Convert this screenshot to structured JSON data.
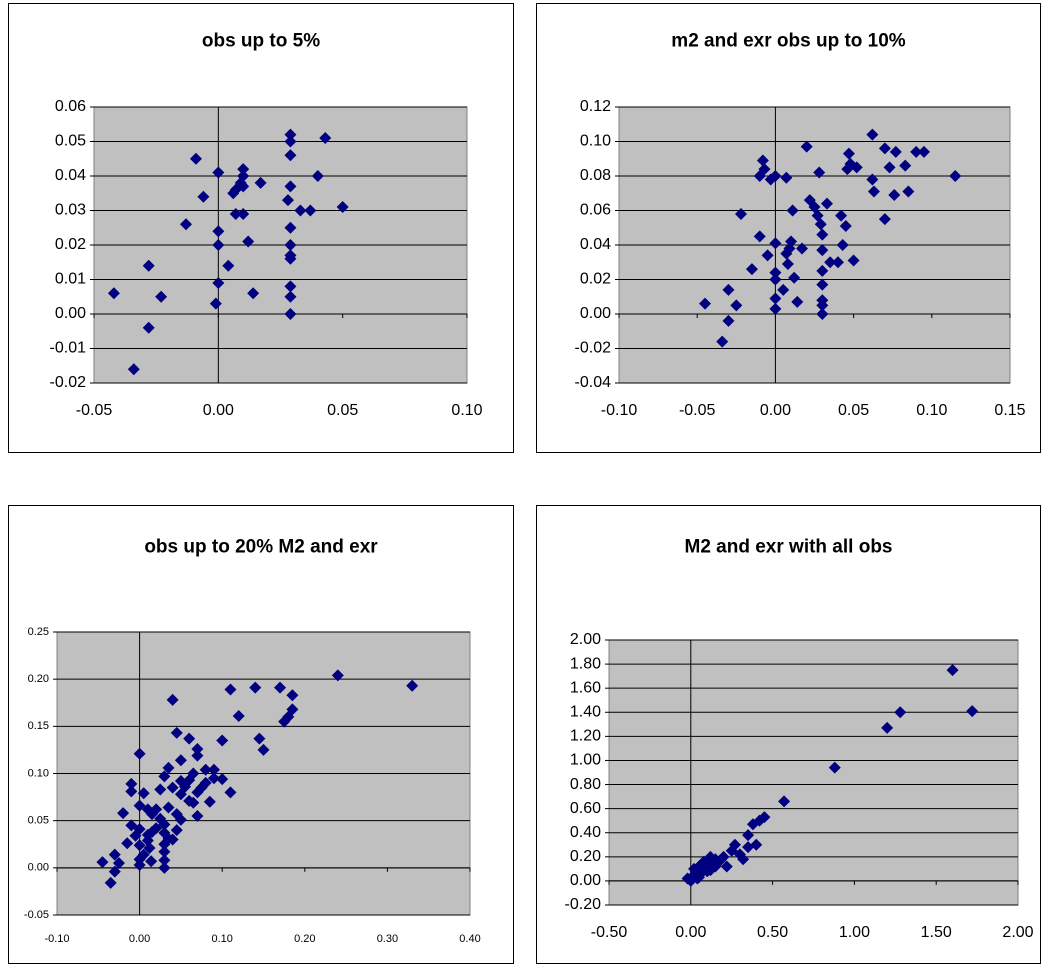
{
  "chart_data": [
    {
      "type": "scatter",
      "title": "obs up to 5%",
      "color": "#000080",
      "grid": true,
      "x": [
        -0.042,
        -0.034,
        -0.028,
        -0.028,
        -0.023,
        -0.013,
        -0.009,
        -0.006,
        -0.001,
        0.0,
        0.0,
        0.0,
        0.0,
        0.004,
        0.006,
        0.007,
        0.007,
        0.009,
        0.01,
        0.01,
        0.01,
        0.01,
        0.012,
        0.014,
        0.017,
        0.028,
        0.029,
        0.029,
        0.029,
        0.029,
        0.029,
        0.029,
        0.029,
        0.029,
        0.029,
        0.029,
        0.029,
        0.033,
        0.037,
        0.04,
        0.043,
        0.05
      ],
      "values": [
        0.006,
        -0.016,
        0.014,
        -0.004,
        0.005,
        0.026,
        0.045,
        0.034,
        0.003,
        0.009,
        0.024,
        0.02,
        0.041,
        0.014,
        0.035,
        0.036,
        0.029,
        0.038,
        0.042,
        0.04,
        0.029,
        0.037,
        0.021,
        0.006,
        0.038,
        0.033,
        0.052,
        0.05,
        0.046,
        0.037,
        0.025,
        0.02,
        0.017,
        0.016,
        0.008,
        0.005,
        0.0,
        0.03,
        0.03,
        0.04,
        0.051,
        0.031
      ],
      "xlim": [
        -0.05,
        0.1
      ],
      "xticks": [
        -0.05,
        {
          "value": 0,
          "label": "0.00"
        },
        0.05,
        {
          "value": 0.1,
          "label": "0.10"
        }
      ],
      "ylim": [
        -0.02,
        0.06
      ],
      "yticks": [
        -0.02,
        -0.01,
        {
          "value": 0,
          "label": "0.00"
        },
        0.01,
        0.02,
        0.03,
        0.04,
        0.05,
        0.06
      ]
    },
    {
      "type": "scatter",
      "title": "m2 and exr obs up to 10%",
      "color": "#000080",
      "grid": true,
      "x": [
        -0.045,
        -0.034,
        -0.03,
        -0.03,
        -0.025,
        -0.022,
        -0.015,
        -0.01,
        -0.01,
        -0.008,
        -0.007,
        -0.005,
        -0.003,
        0.0,
        0.0,
        0.0,
        0.0,
        0.0,
        0.0,
        0.005,
        0.007,
        0.007,
        0.008,
        0.009,
        0.01,
        0.011,
        0.012,
        0.014,
        0.017,
        0.02,
        0.022,
        0.025,
        0.027,
        0.028,
        0.029,
        0.03,
        0.03,
        0.03,
        0.03,
        0.03,
        0.03,
        0.03,
        0.033,
        0.035,
        0.04,
        0.042,
        0.043,
        0.045,
        0.046,
        0.047,
        0.048,
        0.05,
        0.052,
        0.062,
        0.062,
        0.063,
        0.07,
        0.07,
        0.073,
        0.076,
        0.077,
        0.083,
        0.085,
        0.09,
        0.095,
        0.115
      ],
      "values": [
        0.006,
        -0.016,
        0.014,
        -0.004,
        0.005,
        0.058,
        0.026,
        0.045,
        0.08,
        0.089,
        0.084,
        0.034,
        0.078,
        0.08,
        0.003,
        0.009,
        0.024,
        0.02,
        0.041,
        0.014,
        0.079,
        0.035,
        0.029,
        0.038,
        0.042,
        0.06,
        0.021,
        0.007,
        0.038,
        0.097,
        0.066,
        0.062,
        0.057,
        0.082,
        0.052,
        0.046,
        0.037,
        0.025,
        0.017,
        0.008,
        0.005,
        0.0,
        0.064,
        0.03,
        0.03,
        0.057,
        0.04,
        0.051,
        0.084,
        0.093,
        0.087,
        0.031,
        0.085,
        0.104,
        0.078,
        0.071,
        0.096,
        0.055,
        0.085,
        0.069,
        0.094,
        0.086,
        0.071,
        0.094,
        0.094,
        0.08
      ],
      "xlim": [
        -0.1,
        0.15
      ],
      "xticks": [
        {
          "value": -0.1,
          "label": "-0.10"
        },
        -0.05,
        {
          "value": 0,
          "label": "0.00"
        },
        0.05,
        {
          "value": 0.1,
          "label": "0.10"
        },
        0.15
      ],
      "ylim": [
        -0.04,
        0.12
      ],
      "yticks": [
        -0.04,
        -0.02,
        {
          "value": 0,
          "label": "0.00"
        },
        0.02,
        0.04,
        0.06,
        0.08,
        {
          "value": 0.1,
          "label": "0.10"
        },
        0.12
      ]
    },
    {
      "type": "scatter",
      "title": "obs up to 20% M2 and exr",
      "color": "#000080",
      "grid": true,
      "x": [
        0.04,
        0.11,
        0.14,
        0.17,
        0.185,
        0.24,
        0.33,
        0.12,
        0.175,
        0.18,
        0.185,
        0.145,
        0.15,
        0.1,
        0.11,
        0.06,
        0.07,
        0.045,
        0.0,
        0.05,
        0.07,
        0.08,
        0.09,
        0.08,
        0.085,
        0.07,
        0.065,
        0.06,
        0.055,
        0.05,
        0.04,
        0.035,
        0.03,
        0.025,
        0.035,
        0.02,
        0.015,
        0.01,
        0.005,
        0.0,
        -0.01,
        -0.01,
        -0.02,
        -0.01,
        -0.005,
        0.0,
        0.0,
        0.0,
        0.0,
        0.005,
        0.01,
        0.01,
        0.015,
        0.02,
        0.025,
        0.03,
        0.03,
        0.03,
        0.03,
        0.03,
        0.03,
        0.035,
        0.04,
        0.045,
        0.045,
        0.05,
        0.06,
        0.07,
        0.075,
        0.065,
        0.012,
        0.014,
        -0.015,
        -0.03,
        -0.035,
        -0.03,
        -0.045,
        -0.025,
        0.09,
        0.1,
        0.05
      ],
      "values": [
        0.178,
        0.189,
        0.191,
        0.191,
        0.183,
        0.204,
        0.193,
        0.161,
        0.155,
        0.16,
        0.168,
        0.137,
        0.125,
        0.135,
        0.08,
        0.137,
        0.126,
        0.143,
        0.121,
        0.114,
        0.119,
        0.104,
        0.095,
        0.09,
        0.07,
        0.08,
        0.1,
        0.093,
        0.086,
        0.092,
        0.085,
        0.106,
        0.097,
        0.083,
        0.064,
        0.062,
        0.057,
        0.062,
        0.079,
        0.066,
        0.089,
        0.081,
        0.058,
        0.045,
        0.034,
        0.024,
        0.009,
        0.003,
        0.041,
        0.014,
        0.035,
        0.029,
        0.038,
        0.042,
        0.052,
        0.046,
        0.037,
        0.025,
        0.017,
        0.008,
        0.0,
        0.031,
        0.03,
        0.057,
        0.04,
        0.051,
        0.071,
        0.055,
        0.085,
        0.069,
        0.021,
        0.007,
        0.026,
        0.014,
        -0.016,
        -0.004,
        0.006,
        0.005,
        0.104,
        0.094,
        0.078
      ],
      "xlim": [
        -0.1,
        0.4
      ],
      "xticks": [
        {
          "value": -0.1,
          "label": "-0.10"
        },
        {
          "value": 0,
          "label": "0.00"
        },
        {
          "value": 0.1,
          "label": "0.10"
        },
        {
          "value": 0.2,
          "label": "0.20"
        },
        {
          "value": 0.3,
          "label": "0.30"
        },
        {
          "value": 0.4,
          "label": "0.40"
        }
      ],
      "ylim": [
        -0.05,
        0.25
      ],
      "yticks": [
        -0.05,
        {
          "value": 0,
          "label": "0.00"
        },
        0.05,
        {
          "value": 0.1,
          "label": "0.10"
        },
        0.15,
        {
          "value": 0.2,
          "label": "0.20"
        },
        0.25
      ]
    },
    {
      "type": "scatter",
      "title": "M2 and exr with all obs",
      "color": "#000080",
      "grid": true,
      "x": [
        0.0,
        0.02,
        0.03,
        0.05,
        0.05,
        0.07,
        0.08,
        0.1,
        0.1,
        0.12,
        0.15,
        0.15,
        0.18,
        0.2,
        0.22,
        0.25,
        0.27,
        0.3,
        0.32,
        0.35,
        0.35,
        0.38,
        0.4,
        0.42,
        0.45,
        0.57,
        0.88,
        1.2,
        1.28,
        1.6,
        1.72,
        0.02,
        0.04,
        0.06,
        0.09,
        0.12,
        -0.02,
        0.01
      ],
      "values": [
        0.0,
        0.05,
        0.08,
        0.03,
        0.12,
        0.1,
        0.16,
        0.08,
        0.15,
        0.2,
        0.12,
        0.18,
        0.17,
        0.2,
        0.12,
        0.25,
        0.3,
        0.22,
        0.18,
        0.38,
        0.28,
        0.47,
        0.3,
        0.5,
        0.53,
        0.66,
        0.94,
        1.27,
        1.4,
        1.75,
        1.41,
        0.1,
        0.02,
        0.06,
        0.12,
        0.09,
        0.02,
        0.03
      ],
      "xlim": [
        -0.5,
        2
      ],
      "xticks": [
        {
          "value": -0.5,
          "label": "-0.50"
        },
        {
          "value": 0,
          "label": "0.00"
        },
        {
          "value": 0.5,
          "label": "0.50"
        },
        {
          "value": 1,
          "label": "1.00"
        },
        {
          "value": 1.5,
          "label": "1.50"
        },
        {
          "value": 2,
          "label": "2.00"
        }
      ],
      "ylim": [
        -0.2,
        2
      ],
      "yticks": [
        {
          "value": -0.2,
          "label": "-0.20"
        },
        {
          "value": 0,
          "label": "0.00"
        },
        {
          "value": 0.2,
          "label": "0.20"
        },
        {
          "value": 0.4,
          "label": "0.40"
        },
        {
          "value": 0.6,
          "label": "0.60"
        },
        {
          "value": 0.8,
          "label": "0.80"
        },
        {
          "value": 1,
          "label": "1.00"
        },
        {
          "value": 1.2,
          "label": "1.20"
        },
        {
          "value": 1.4,
          "label": "1.40"
        },
        {
          "value": 1.6,
          "label": "1.60"
        },
        {
          "value": 1.8,
          "label": "1.80"
        },
        {
          "value": 2,
          "label": "2.00"
        }
      ]
    }
  ]
}
